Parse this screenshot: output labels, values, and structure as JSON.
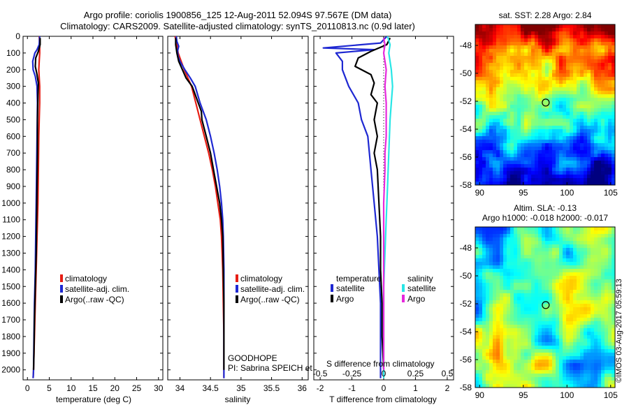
{
  "header": {
    "title_line1": "Argo profile: coriolis 1900856_125 12-Aug-2011 52.094S 97.567E (DM data)",
    "title_line2": "Climatology: CARS2009. Satellite-adjusted climatology: synTS_20110813.nc (0.9d later)"
  },
  "colors": {
    "climatology": "#e61e14",
    "satellite": "#1e28d2",
    "argo": "#000000",
    "argo_salinity_diff": "#e628dc",
    "satellite_salinity_diff": "#28e6e6"
  },
  "chart_data": [
    {
      "type": "line",
      "name": "temperature-profile",
      "xlabel": "temperature (deg C)",
      "ylabel": "",
      "xlim": [
        -1,
        31
      ],
      "ylim": [
        2060,
        0
      ],
      "xticks": [
        0,
        5,
        10,
        15,
        20,
        25,
        30
      ],
      "xtick_labels": [
        "0",
        "5",
        "10",
        "15",
        "20",
        "25",
        "30"
      ],
      "yticks": [
        0,
        100,
        200,
        300,
        400,
        500,
        600,
        700,
        800,
        900,
        1000,
        1100,
        1200,
        1300,
        1400,
        1500,
        1600,
        1700,
        1800,
        1900,
        2000
      ],
      "ytick_labels": [
        "0",
        "100",
        "200",
        "300",
        "400",
        "500",
        "600",
        "700",
        "800",
        "900",
        "1000",
        "1100",
        "1200",
        "1300",
        "1400",
        "1500",
        "1600",
        "1700",
        "1800",
        "1900",
        "2000"
      ],
      "legend": {
        "items": [
          "climatology",
          "satellite-adj. clim.",
          "Argo(..raw -QC)"
        ],
        "position": "lower-right"
      },
      "series": [
        {
          "name": "climatology",
          "color_key": "climatology",
          "points": [
            [
              2.7,
              0
            ],
            [
              2.8,
              50
            ],
            [
              2.8,
              100
            ],
            [
              2.7,
              150
            ],
            [
              2.6,
              200
            ],
            [
              2.8,
              300
            ],
            [
              2.8,
              400
            ],
            [
              2.7,
              500
            ],
            [
              2.6,
              600
            ],
            [
              2.5,
              800
            ],
            [
              2.4,
              1000
            ],
            [
              2.2,
              1200
            ],
            [
              2.0,
              1400
            ],
            [
              1.8,
              1600
            ],
            [
              1.6,
              1800
            ],
            [
              1.4,
              2000
            ],
            [
              1.3,
              2050
            ]
          ]
        },
        {
          "name": "satellite-adj. clim.",
          "color_key": "satellite",
          "points": [
            [
              2.8,
              0
            ],
            [
              2.7,
              50
            ],
            [
              2.2,
              80
            ],
            [
              1.7,
              100
            ],
            [
              1.2,
              150
            ],
            [
              1.3,
              200
            ],
            [
              1.8,
              240
            ],
            [
              2.2,
              300
            ],
            [
              2.3,
              400
            ],
            [
              2.2,
              600
            ],
            [
              2.1,
              800
            ],
            [
              2.0,
              1000
            ],
            [
              1.9,
              1200
            ],
            [
              1.8,
              1400
            ],
            [
              1.6,
              1600
            ],
            [
              1.5,
              1800
            ],
            [
              1.4,
              2000
            ],
            [
              1.3,
              2050
            ]
          ]
        },
        {
          "name": "Argo(..raw -QC)",
          "color_key": "argo",
          "points": [
            [
              2.9,
              10
            ],
            [
              2.9,
              50
            ],
            [
              2.5,
              90
            ],
            [
              1.9,
              130
            ],
            [
              1.8,
              180
            ],
            [
              2.2,
              230
            ],
            [
              2.5,
              280
            ],
            [
              2.4,
              350
            ],
            [
              2.3,
              500
            ],
            [
              2.3,
              700
            ],
            [
              2.2,
              900
            ],
            [
              2.1,
              1100
            ],
            [
              2.0,
              1300
            ],
            [
              1.8,
              1500
            ],
            [
              1.6,
              1700
            ],
            [
              1.5,
              1900
            ],
            [
              1.4,
              2000
            ]
          ]
        }
      ]
    },
    {
      "type": "line",
      "name": "salinity-profile",
      "xlabel": "salinity",
      "xlim": [
        33.8,
        36.1
      ],
      "ylim": [
        2060,
        0
      ],
      "xticks": [
        34,
        34.5,
        35,
        35.5,
        36
      ],
      "xtick_labels": [
        "34",
        "34.5",
        "35",
        "35.5",
        "36"
      ],
      "legend": {
        "items": [
          "climatology",
          "satellite-adj. clim.",
          "Argo(..raw -QC)"
        ],
        "position": "lower-right"
      },
      "annotations": [
        "GOODHOPE",
        "PI: Sabrina SPEICH et Michel ARHAN"
      ],
      "series": [
        {
          "name": "climatology",
          "color_key": "climatology",
          "points": [
            [
              33.92,
              0
            ],
            [
              33.95,
              50
            ],
            [
              33.97,
              100
            ],
            [
              34.02,
              150
            ],
            [
              34.07,
              200
            ],
            [
              34.13,
              250
            ],
            [
              34.19,
              300
            ],
            [
              34.26,
              400
            ],
            [
              34.33,
              500
            ],
            [
              34.4,
              600
            ],
            [
              34.47,
              700
            ],
            [
              34.53,
              800
            ],
            [
              34.58,
              900
            ],
            [
              34.62,
              1000
            ],
            [
              34.66,
              1100
            ],
            [
              34.68,
              1200
            ],
            [
              34.7,
              1400
            ],
            [
              34.71,
              1600
            ],
            [
              34.72,
              1800
            ],
            [
              34.72,
              2050
            ]
          ]
        },
        {
          "name": "satellite-adj. clim.",
          "color_key": "satellite",
          "points": [
            [
              33.94,
              0
            ],
            [
              33.95,
              30
            ],
            [
              33.98,
              60
            ],
            [
              33.96,
              90
            ],
            [
              33.97,
              120
            ],
            [
              34.0,
              150
            ],
            [
              34.08,
              200
            ],
            [
              34.17,
              250
            ],
            [
              34.25,
              300
            ],
            [
              34.33,
              400
            ],
            [
              34.43,
              500
            ],
            [
              34.5,
              600
            ],
            [
              34.56,
              700
            ],
            [
              34.61,
              800
            ],
            [
              34.65,
              900
            ],
            [
              34.68,
              1000
            ],
            [
              34.7,
              1100
            ],
            [
              34.71,
              1200
            ],
            [
              34.72,
              1400
            ],
            [
              34.72,
              1600
            ],
            [
              34.72,
              1800
            ],
            [
              34.72,
              2050
            ]
          ]
        },
        {
          "name": "Argo(..raw -QC)",
          "color_key": "argo",
          "points": [
            [
              33.93,
              10
            ],
            [
              33.93,
              50
            ],
            [
              33.95,
              100
            ],
            [
              33.98,
              150
            ],
            [
              34.04,
              200
            ],
            [
              34.1,
              250
            ],
            [
              34.2,
              300
            ],
            [
              34.3,
              400
            ],
            [
              34.35,
              450
            ],
            [
              34.36,
              500
            ],
            [
              34.43,
              600
            ],
            [
              34.5,
              700
            ],
            [
              34.55,
              800
            ],
            [
              34.6,
              900
            ],
            [
              34.65,
              1000
            ],
            [
              34.68,
              1100
            ],
            [
              34.7,
              1200
            ],
            [
              34.71,
              1400
            ],
            [
              34.72,
              1600
            ],
            [
              34.72,
              1800
            ],
            [
              34.72,
              2000
            ]
          ]
        }
      ]
    },
    {
      "type": "line",
      "name": "difference-from-climatology",
      "xlabel": "T difference from climatology",
      "xlim": [
        -2.2,
        2.2
      ],
      "ylim": [
        2060,
        0
      ],
      "xticks": [
        -2,
        -1,
        0,
        1,
        2
      ],
      "xtick_labels": [
        "-2",
        "-1",
        "0",
        "1",
        "2"
      ],
      "secondary_axis": {
        "label": "S difference from climatology",
        "tick_labels": [
          "-0.5",
          "-0.25",
          "0",
          "0.25",
          "0.5"
        ],
        "xlim": [
          -0.55,
          0.55
        ]
      },
      "legend": {
        "group_titles": [
          "temperature",
          "salinity"
        ],
        "items": [
          "satellite",
          "Argo",
          "satellite",
          "Argo"
        ],
        "position": "lower"
      },
      "series": [
        {
          "name": "temperature satellite",
          "color_key": "satellite",
          "points": [
            [
              0.1,
              0
            ],
            [
              -0.1,
              40
            ],
            [
              -1.9,
              70
            ],
            [
              -0.3,
              80
            ],
            [
              -1.5,
              100
            ],
            [
              -1.3,
              150
            ],
            [
              -1.3,
              200
            ],
            [
              -1.1,
              300
            ],
            [
              -0.8,
              400
            ],
            [
              -0.7,
              500
            ],
            [
              -0.5,
              600
            ],
            [
              -0.4,
              800
            ],
            [
              -0.3,
              1000
            ],
            [
              -0.2,
              1200
            ],
            [
              -0.15,
              1400
            ],
            [
              -0.1,
              1600
            ],
            [
              -0.1,
              1800
            ],
            [
              -0.1,
              2000
            ],
            [
              -0.1,
              2050
            ]
          ]
        },
        {
          "name": "temperature Argo",
          "color_key": "argo",
          "points": [
            [
              0.2,
              10
            ],
            [
              0.1,
              50
            ],
            [
              -0.4,
              90
            ],
            [
              -0.8,
              130
            ],
            [
              -0.9,
              180
            ],
            [
              -0.4,
              230
            ],
            [
              -0.3,
              280
            ],
            [
              -0.4,
              350
            ],
            [
              -0.2,
              400
            ],
            [
              -0.3,
              500
            ],
            [
              -0.2,
              600
            ],
            [
              -0.3,
              700
            ],
            [
              -0.2,
              800
            ],
            [
              -0.15,
              1000
            ],
            [
              -0.1,
              1200
            ],
            [
              -0.1,
              1400
            ],
            [
              -0.05,
              1600
            ],
            [
              -0.05,
              1800
            ],
            [
              0,
              2000
            ]
          ]
        },
        {
          "name": "salinity satellite",
          "color_key": "satellite_salinity_diff",
          "points": [
            [
              0.03,
              0
            ],
            [
              0.05,
              50
            ],
            [
              0.04,
              100
            ],
            [
              0.05,
              150
            ],
            [
              0.06,
              200
            ],
            [
              0.07,
              300
            ],
            [
              0.06,
              400
            ],
            [
              0.05,
              500
            ],
            [
              0.04,
              700
            ],
            [
              0.03,
              900
            ],
            [
              0.02,
              1100
            ],
            [
              0.01,
              1300
            ],
            [
              0.0,
              1500
            ],
            [
              0.0,
              1800
            ],
            [
              0.0,
              2050
            ]
          ]
        },
        {
          "name": "salinity Argo",
          "color_key": "argo_salinity_diff",
          "points": [
            [
              0.0,
              10
            ],
            [
              0.01,
              50
            ],
            [
              0.0,
              100
            ],
            [
              0.01,
              150
            ],
            [
              0.02,
              200
            ],
            [
              0.01,
              300
            ],
            [
              0.02,
              400
            ],
            [
              0.02,
              500
            ],
            [
              0.02,
              600
            ],
            [
              0.01,
              700
            ],
            [
              0.01,
              800
            ],
            [
              0.0,
              1000
            ],
            [
              0.0,
              1200
            ],
            [
              0.0,
              1500
            ],
            [
              0.0,
              1800
            ],
            [
              0.0,
              2000
            ]
          ]
        }
      ]
    },
    {
      "type": "heatmap",
      "name": "sst-map",
      "title": "sat. SST: 2.28 Argo: 2.84",
      "xlim": [
        89.5,
        105.5
      ],
      "ylim": [
        -58,
        -46.5
      ],
      "xticks": [
        90,
        95,
        100,
        105
      ],
      "xtick_labels": [
        "90",
        "95",
        "100",
        "105"
      ],
      "yticks": [
        -48,
        -50,
        -52,
        -54,
        -56,
        -58
      ],
      "ytick_labels": [
        "-48",
        "-50",
        "-52",
        "-54",
        "-56",
        "-58"
      ],
      "marker": {
        "lon": 97.567,
        "lat": -52.094
      }
    },
    {
      "type": "heatmap",
      "name": "sla-map",
      "title_line1": "Altim. SLA: -0.13",
      "title_line2": "Argo h1000: -0.018 h2000: -0.017",
      "xlim": [
        89.5,
        105.5
      ],
      "ylim": [
        -58,
        -46.5
      ],
      "xticks": [
        90,
        95,
        100,
        105
      ],
      "xtick_labels": [
        "90",
        "95",
        "100",
        "105"
      ],
      "yticks": [
        -48,
        -50,
        -52,
        -54,
        -56,
        -58
      ],
      "ytick_labels": [
        "-48",
        "-50",
        "-52",
        "-54",
        "-56",
        "-58"
      ],
      "marker": {
        "lon": 97.567,
        "lat": -52.094
      }
    }
  ],
  "watermark": "©IMOS 03-Aug-2017 05:59:13"
}
